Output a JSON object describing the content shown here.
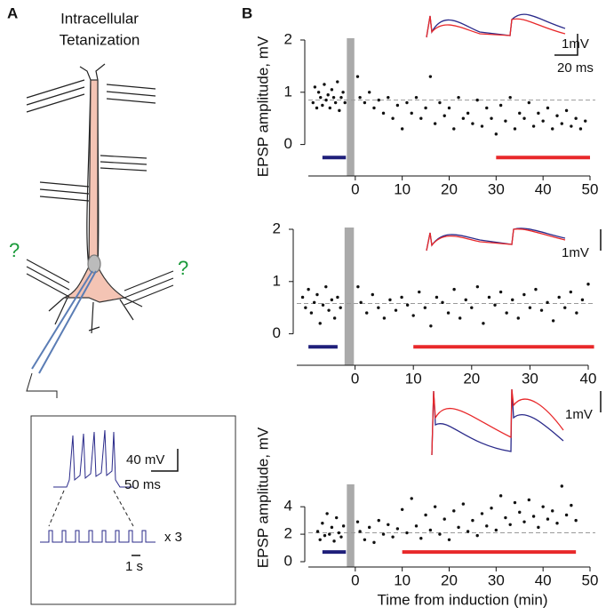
{
  "labels": {
    "panel_a": "A",
    "panel_b": "B",
    "title_line1": "Intracellular",
    "title_line2": "Tetanization",
    "question_left": "?",
    "question_right": "?",
    "inset_mv": "40 mV",
    "inset_ms": "50 ms",
    "inset_repeat": "x 3",
    "inset_s": "1 s",
    "trace1_mv": "1mV",
    "trace1_ms": "20 ms",
    "trace2_mv": "1mV",
    "trace3_mv": "1mV"
  },
  "chart_data": [
    {
      "type": "scatter",
      "ylabel": "EPSP amplitude, mV",
      "color": "#111111",
      "x": [
        -9,
        -8.6,
        -8.2,
        -7.8,
        -7.4,
        -7,
        -6.6,
        -6.2,
        -5.8,
        -5.4,
        -5,
        -4.6,
        -4.2,
        -3.8,
        -3.4,
        -3,
        -2.6,
        -2.2,
        0.5,
        1,
        2,
        3,
        4,
        5,
        6,
        7,
        8,
        9,
        10,
        11,
        12,
        13,
        14,
        15,
        16,
        17,
        18,
        19,
        20,
        21,
        22,
        23,
        24,
        25,
        26,
        27,
        28,
        29,
        30,
        31,
        32,
        33,
        34,
        35,
        36,
        37,
        38,
        39,
        40,
        41,
        42,
        43,
        44,
        45,
        46,
        47,
        48,
        49
      ],
      "values": [
        0.8,
        1.1,
        0.7,
        1.0,
        0.9,
        0.75,
        1.15,
        0.85,
        0.95,
        0.7,
        1.05,
        0.9,
        0.8,
        1.2,
        0.65,
        0.9,
        1.0,
        0.8,
        1.3,
        0.9,
        0.8,
        1.0,
        0.7,
        0.85,
        0.6,
        0.9,
        0.5,
        0.75,
        0.3,
        0.8,
        0.6,
        0.9,
        0.5,
        0.7,
        1.3,
        0.4,
        0.8,
        0.55,
        0.7,
        0.3,
        0.9,
        0.5,
        0.6,
        0.4,
        0.85,
        0.35,
        0.7,
        0.5,
        0.2,
        0.75,
        0.45,
        0.9,
        0.3,
        0.6,
        0.5,
        0.8,
        0.35,
        0.6,
        0.45,
        0.7,
        0.3,
        0.55,
        0.4,
        0.65,
        0.35,
        0.5,
        0.3,
        0.45
      ],
      "xlim": [
        -10,
        50
      ],
      "xticks": [
        0,
        10,
        20,
        30,
        40,
        50
      ],
      "ylim": [
        -0.5,
        2
      ],
      "yticks": [
        0,
        1,
        2
      ],
      "reference_line": 0.85,
      "induction_bar": [
        -1.8,
        -0.2
      ],
      "induction_color": "#aaaaaa",
      "pre_bar": {
        "x": [
          -7,
          -2
        ],
        "y": -0.25,
        "color": "#1f1f7a"
      },
      "post_bar": {
        "x": [
          30,
          50
        ],
        "y": -0.25,
        "color": "#e8282a"
      }
    },
    {
      "type": "scatter",
      "color": "#111111",
      "x": [
        -9,
        -8.5,
        -8,
        -7.5,
        -7,
        -6.5,
        -6,
        -5.5,
        -5,
        -4.5,
        -4,
        -3.5,
        -3,
        -2.5,
        0.5,
        1,
        2,
        3,
        4,
        5,
        6,
        7,
        8,
        9,
        10,
        11,
        12,
        13,
        14,
        15,
        16,
        17,
        18,
        19,
        20,
        21,
        22,
        23,
        24,
        25,
        26,
        27,
        28,
        29,
        30,
        31,
        32,
        33,
        34,
        35,
        36,
        37,
        38,
        39,
        40
      ],
      "values": [
        0.7,
        0.5,
        0.85,
        0.4,
        0.6,
        0.75,
        0.2,
        0.55,
        0.9,
        0.45,
        0.65,
        0.3,
        0.7,
        0.5,
        0.9,
        0.6,
        0.4,
        0.75,
        0.5,
        0.3,
        0.65,
        0.45,
        0.7,
        0.55,
        0.35,
        0.8,
        0.5,
        0.15,
        0.7,
        0.6,
        0.4,
        0.85,
        0.3,
        0.65,
        0.5,
        0.9,
        0.2,
        0.7,
        0.55,
        0.8,
        0.4,
        0.65,
        0.3,
        0.75,
        0.5,
        0.85,
        0.45,
        0.6,
        0.25,
        0.7,
        0.5,
        0.8,
        0.4,
        0.65,
        0.95
      ],
      "xlim": [
        -10,
        40
      ],
      "xticks": [
        0,
        10,
        20,
        30,
        40
      ],
      "ylim": [
        -0.5,
        2
      ],
      "yticks": [
        0,
        1,
        2
      ],
      "reference_line": 0.58,
      "induction_bar": [
        -1.8,
        -0.2
      ],
      "induction_color": "#aaaaaa",
      "pre_bar": {
        "x": [
          -8,
          -3
        ],
        "y": -0.25,
        "color": "#1f1f7a"
      },
      "post_bar": {
        "x": [
          10,
          41
        ],
        "y": -0.25,
        "color": "#e8282a"
      }
    },
    {
      "type": "scatter",
      "ylabel": "EPSP amplitude, mV",
      "xlabel": "Time from induction (min)",
      "color": "#111111",
      "x": [
        -8,
        -7.5,
        -7,
        -6.5,
        -6,
        -5.5,
        -5,
        -4.5,
        -4,
        -3.5,
        -3,
        -2.5,
        0.5,
        1,
        2,
        3,
        4,
        5,
        6,
        7,
        8,
        9,
        10,
        11,
        12,
        13,
        14,
        15,
        16,
        17,
        18,
        19,
        20,
        21,
        22,
        23,
        24,
        25,
        26,
        27,
        28,
        29,
        30,
        31,
        32,
        33,
        34,
        35,
        36,
        37,
        38,
        39,
        40,
        41,
        42,
        43,
        44,
        45,
        46,
        47
      ],
      "values": [
        2.2,
        1.6,
        2.8,
        1.9,
        3.5,
        2.0,
        2.5,
        1.5,
        3.2,
        2.1,
        1.8,
        2.6,
        2.9,
        2.2,
        1.6,
        2.5,
        1.4,
        3.0,
        2.0,
        2.7,
        1.8,
        2.4,
        3.8,
        2.1,
        4.6,
        2.6,
        1.7,
        3.4,
        2.3,
        4.0,
        2.0,
        3.1,
        1.6,
        3.7,
        2.5,
        4.2,
        2.2,
        3.0,
        1.9,
        3.5,
        2.6,
        3.9,
        2.3,
        4.8,
        3.2,
        2.7,
        4.3,
        3.6,
        2.9,
        4.5,
        3.3,
        2.5,
        4.0,
        3.1,
        3.7,
        2.8,
        5.5,
        3.4,
        4.1,
        3.0
      ],
      "xlim": [
        -10,
        50
      ],
      "xticks": [
        0,
        10,
        20,
        30,
        40,
        50
      ],
      "ylim": [
        0,
        5.5
      ],
      "yticks": [
        0,
        2,
        4
      ],
      "reference_line": 2.1,
      "induction_bar": [
        -1.8,
        -0.2
      ],
      "induction_color": "#aaaaaa",
      "pre_bar": {
        "x": [
          -7,
          -2
        ],
        "y": 0.7,
        "color": "#1f1f7a"
      },
      "post_bar": {
        "x": [
          10,
          47
        ],
        "y": 0.7,
        "color": "#e8282a"
      }
    }
  ]
}
